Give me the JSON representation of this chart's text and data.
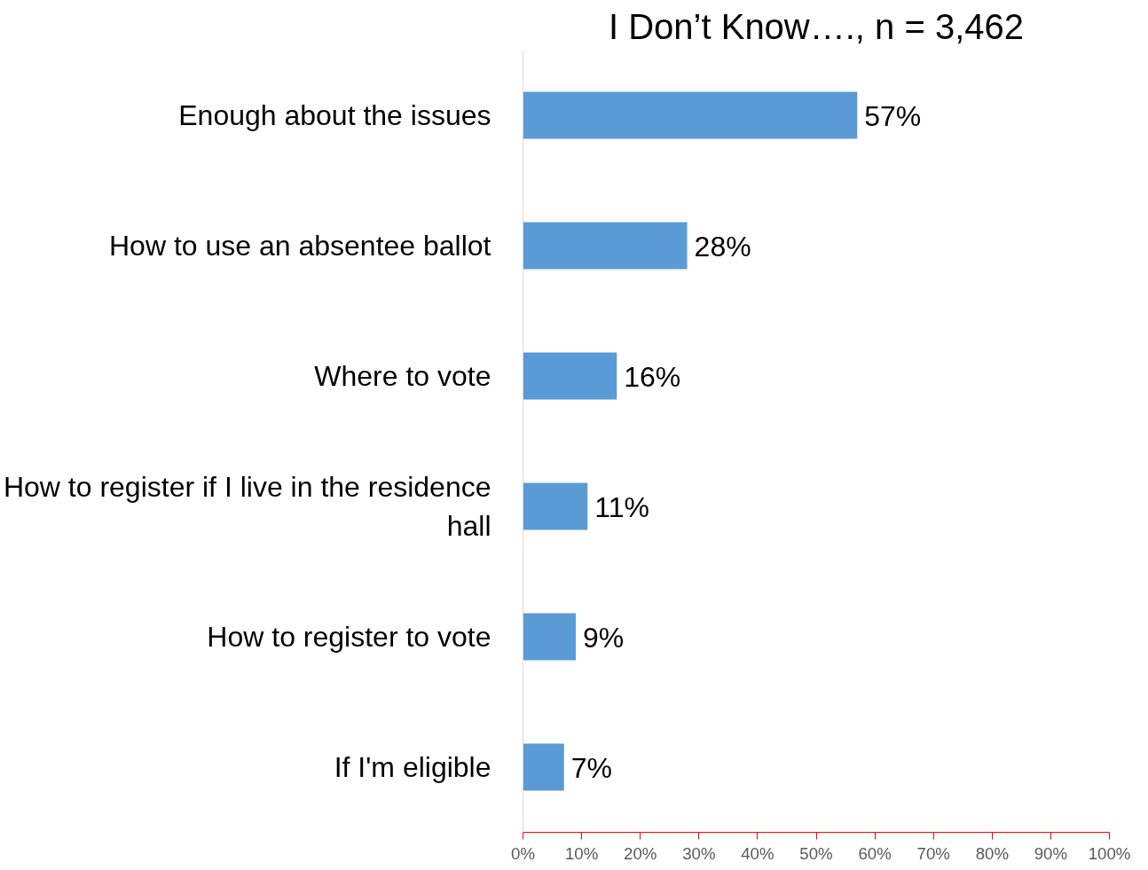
{
  "chart_data": {
    "type": "bar",
    "orientation": "horizontal",
    "title": "I Don’t Know…., n = 3,462",
    "categories": [
      "Enough about the issues",
      "How to use an absentee ballot",
      "Where to vote",
      "How to register if I live in the residence hall",
      "How to register to vote",
      "If I'm eligible"
    ],
    "values": [
      57,
      28,
      16,
      11,
      9,
      7
    ],
    "color": "#5b9bd5",
    "data_labels": true,
    "value_labels": [
      "57%",
      "28%",
      "16%",
      "11%",
      "9%",
      "7%"
    ],
    "xlim": [
      0,
      100
    ],
    "xticks": [
      {
        "value": 0,
        "label": "0%"
      },
      {
        "value": 10,
        "label": "10%"
      },
      {
        "value": 20,
        "label": "20%"
      },
      {
        "value": 30,
        "label": "30%"
      },
      {
        "value": 40,
        "label": "40%"
      },
      {
        "value": 50,
        "label": "50%"
      },
      {
        "value": 60,
        "label": "60%"
      },
      {
        "value": 70,
        "label": "70%"
      },
      {
        "value": 80,
        "label": "80%"
      },
      {
        "value": 90,
        "label": "90%"
      },
      {
        "value": 100,
        "label": "100%"
      }
    ],
    "grid": false
  }
}
